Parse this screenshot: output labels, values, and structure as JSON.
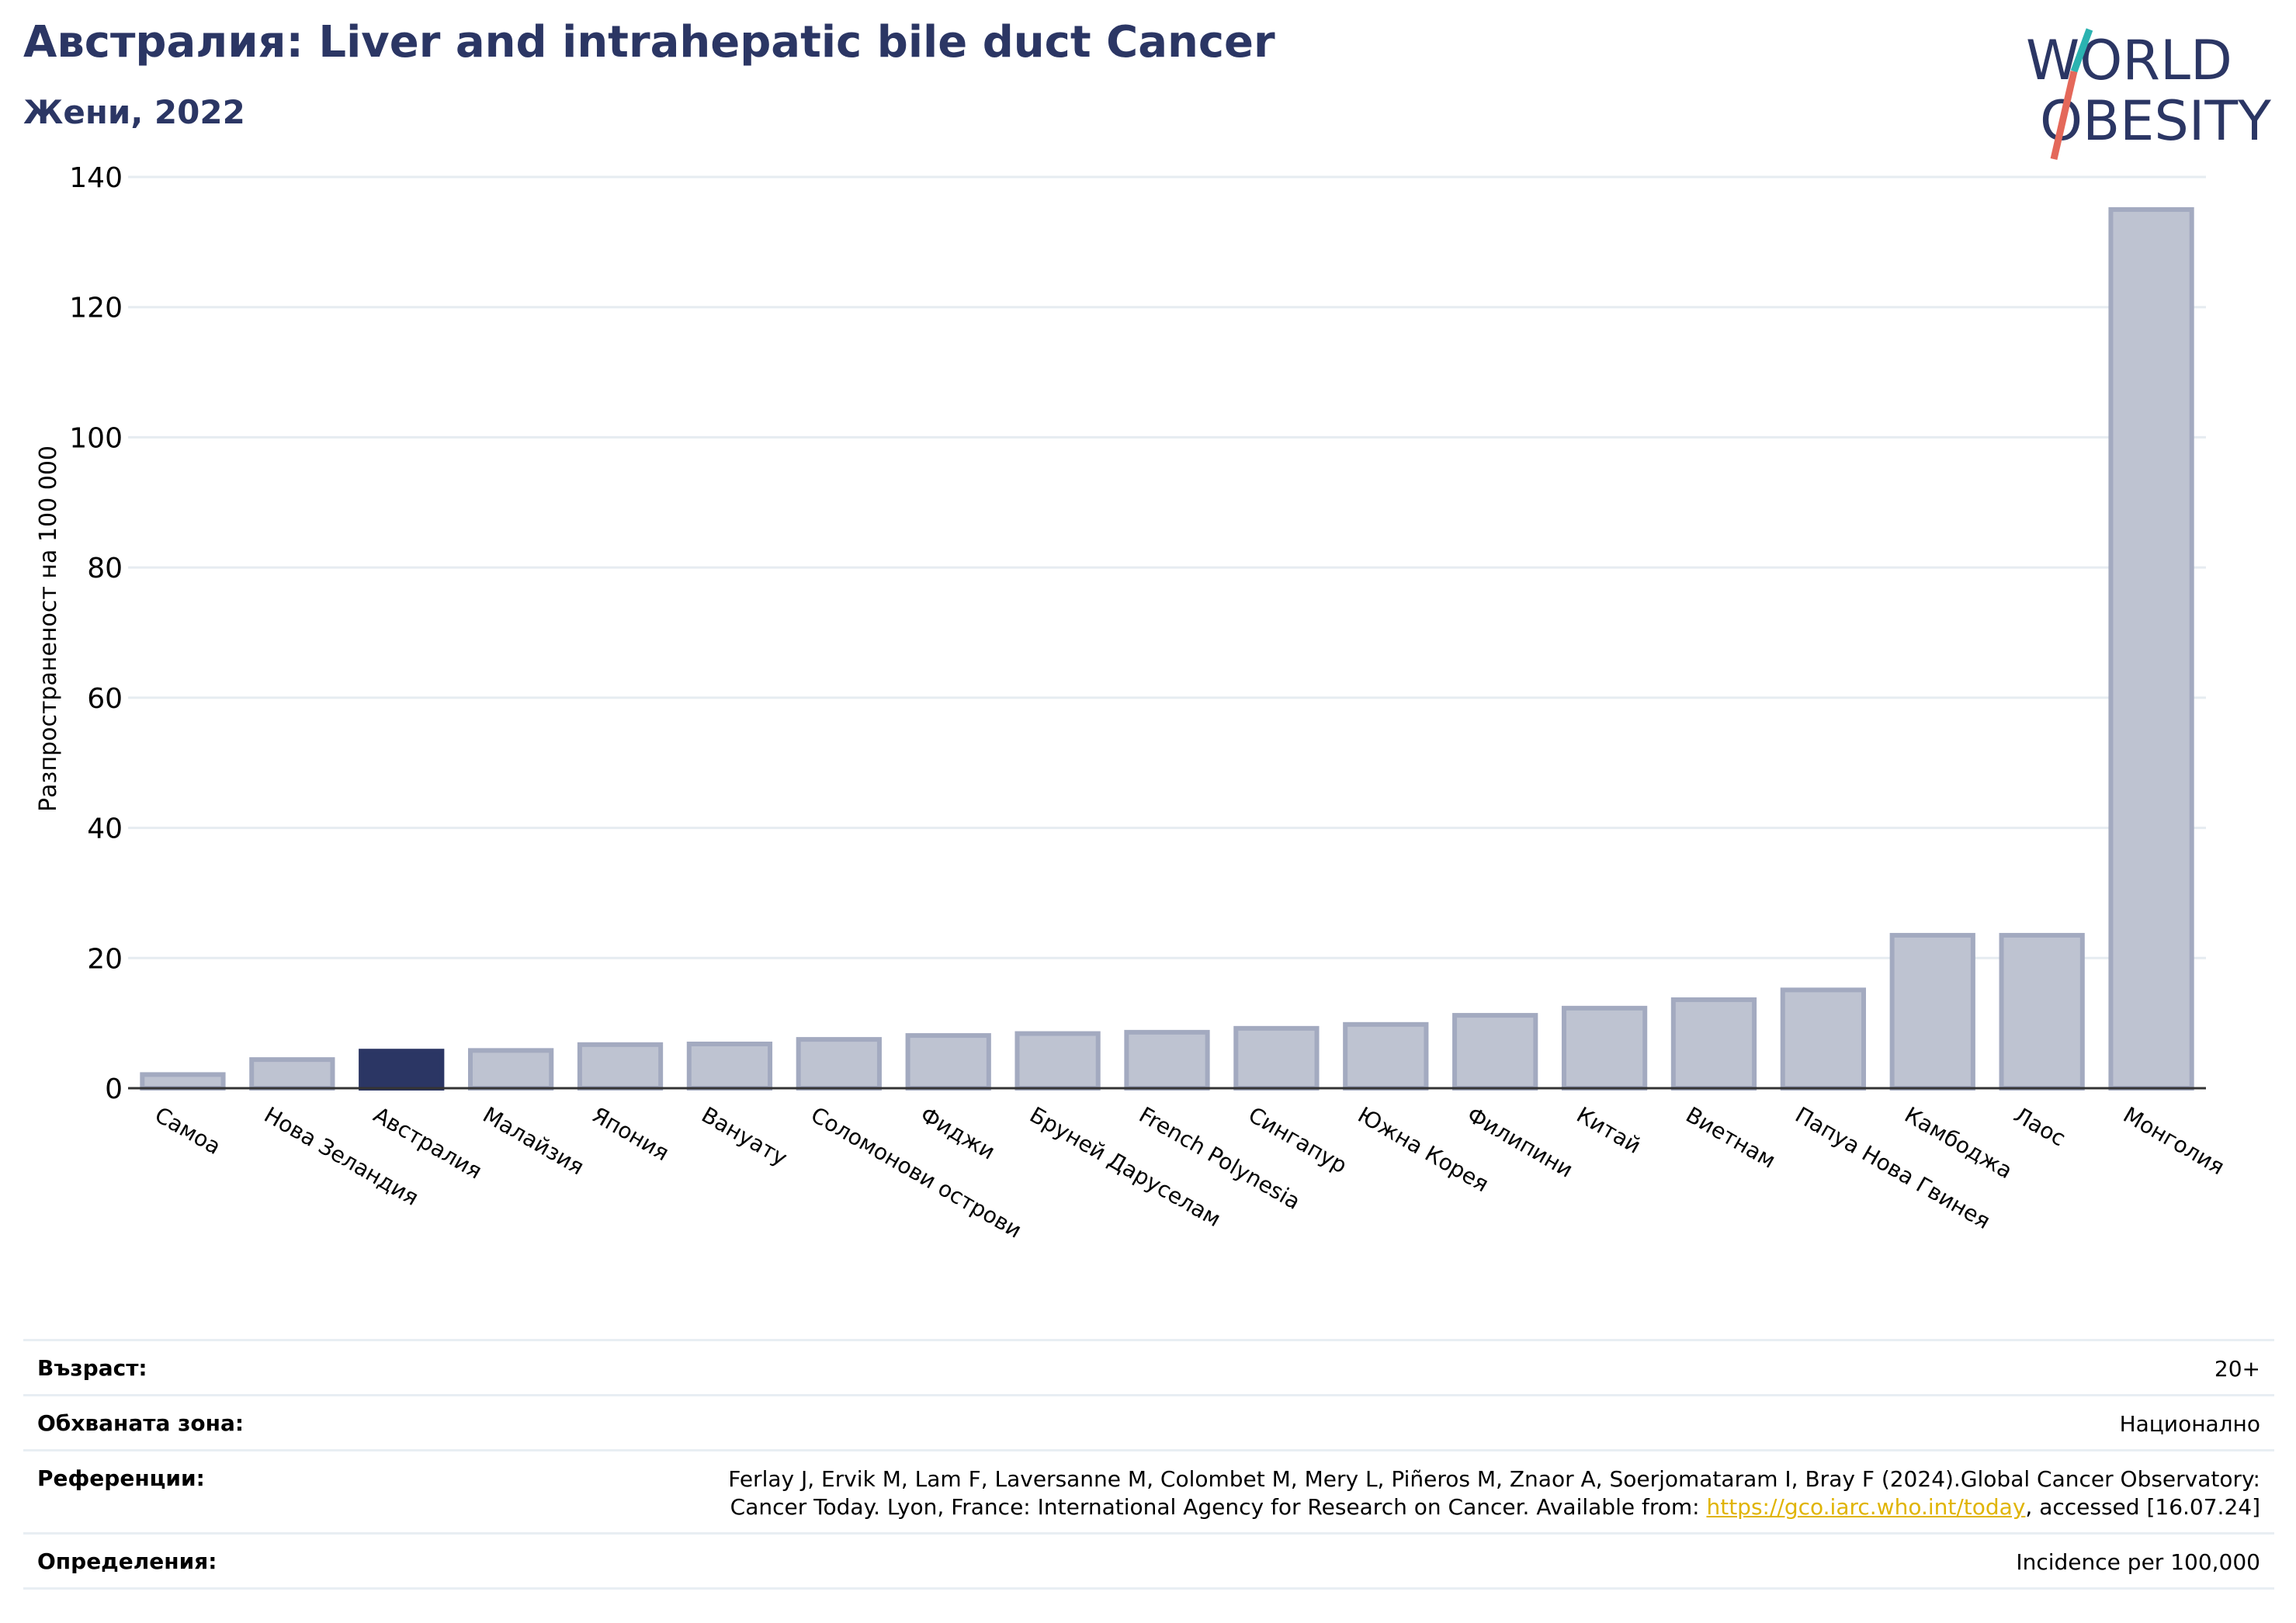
{
  "header": {
    "title": "Австралия: Liver and intrahepatic bile duct Cancer",
    "subtitle": "Жени, 2022"
  },
  "logo": {
    "line1": "WORLD",
    "line2": "OBESITY",
    "accent_teal": "#2bb3b1",
    "accent_coral": "#e4685a"
  },
  "colors": {
    "highlight": "#2b3664",
    "bar": "#bec3d1",
    "bar_stroke": "#a3aac0",
    "text": "#2b3664"
  },
  "chart_data": {
    "type": "bar",
    "title": "Австралия: Liver and intrahepatic bile duct Cancer",
    "subtitle": "Жени, 2022",
    "ylabel": "Разпространеност  на 100 000",
    "xlabel": "",
    "ylim": [
      0,
      140
    ],
    "yticks": [
      0,
      20,
      40,
      60,
      80,
      100,
      120,
      140
    ],
    "grid": true,
    "highlight": "Австралия",
    "categories": [
      "Самоа",
      "Нова Зеландия",
      "Австралия",
      "Малайзия",
      "Япония",
      "Вануату",
      "Соломонови острови",
      "Фиджи",
      "Бруней Даруселам",
      "French Polynesia",
      "Сингапур",
      "Южна Корея",
      "Филипини",
      "Китай",
      "Виетнам",
      "Папуа Нова Гвинея",
      "Камбоджа",
      "Лаос",
      "Монголия"
    ],
    "values": [
      2.1,
      4.4,
      5.7,
      5.8,
      6.7,
      6.8,
      7.5,
      8.1,
      8.4,
      8.6,
      9.2,
      9.8,
      11.2,
      12.3,
      13.6,
      15.1,
      23.5,
      23.5,
      135.0
    ]
  },
  "meta": [
    {
      "key": "Възраст:",
      "value": "20+"
    },
    {
      "key": "Обхваната зона:",
      "value": "Национално"
    },
    {
      "key": "Референции:",
      "value_line1": "Ferlay J, Ervik M, Lam F, Laversanne M, Colombet M, Mery L, Piñeros M, Znaor A, Soerjomataram I, Bray F (2024).Global Cancer Observatory:",
      "value_line2_pre": "Cancer Today. Lyon, France: International Agency for Research on Cancer. Available from: ",
      "link": "https://gco.iarc.who.int/today",
      "value_line2_post": ", accessed [16.07.24]"
    },
    {
      "key": "Определения:",
      "value": "Incidence per 100,000"
    }
  ]
}
